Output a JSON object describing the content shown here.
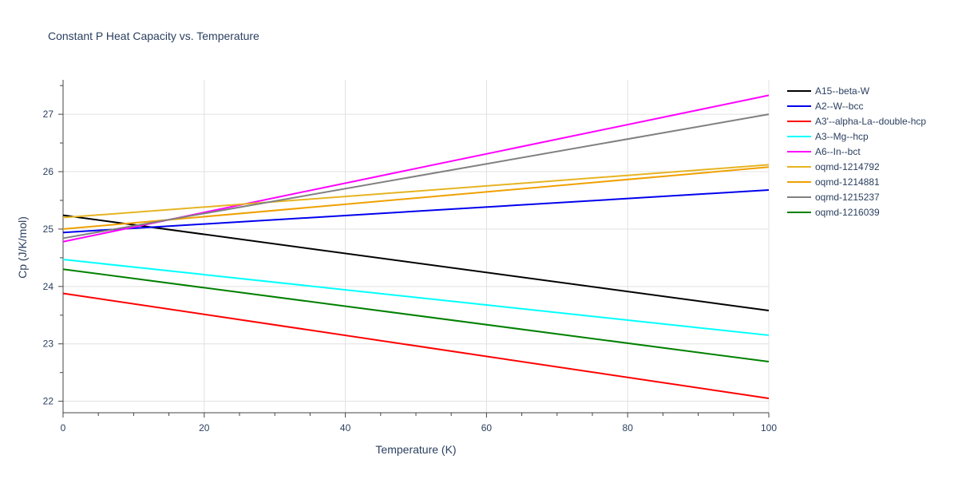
{
  "chart_data": {
    "type": "line",
    "title": "Constant P Heat Capacity vs. Temperature",
    "xlabel": "Temperature (K)",
    "ylabel": "Cp (J/K/mol)",
    "xlim": [
      0,
      100
    ],
    "ylim": [
      21.8,
      27.6
    ],
    "x_ticks": [
      0,
      20,
      40,
      60,
      80,
      100
    ],
    "y_ticks": [
      22,
      23,
      24,
      25,
      26,
      27
    ],
    "grid": true,
    "legend_position": "right",
    "x": [
      0,
      100
    ],
    "series": [
      {
        "name": "A15--beta-W",
        "color": "#000000",
        "values": [
          25.24,
          23.58
        ]
      },
      {
        "name": "A2--W--bcc",
        "color": "#0000ee",
        "values": [
          24.94,
          25.68
        ]
      },
      {
        "name": "A3'--alpha-La--double-hcp",
        "color": "#ff0000",
        "values": [
          23.88,
          22.05
        ]
      },
      {
        "name": "A3--Mg--hcp",
        "color": "#00ffff",
        "values": [
          24.47,
          23.15
        ]
      },
      {
        "name": "A6--In--bct",
        "color": "#ff00ff",
        "values": [
          24.78,
          27.33
        ]
      },
      {
        "name": "oqmd-1214792",
        "color": "#e6b422",
        "values": [
          25.2,
          26.12
        ]
      },
      {
        "name": "oqmd-1214881",
        "color": "#f0a000",
        "values": [
          25.0,
          26.08
        ]
      },
      {
        "name": "oqmd-1215237",
        "color": "#808080",
        "values": [
          24.84,
          27.0
        ]
      },
      {
        "name": "oqmd-1216039",
        "color": "#008000",
        "values": [
          24.3,
          22.69
        ]
      }
    ]
  }
}
